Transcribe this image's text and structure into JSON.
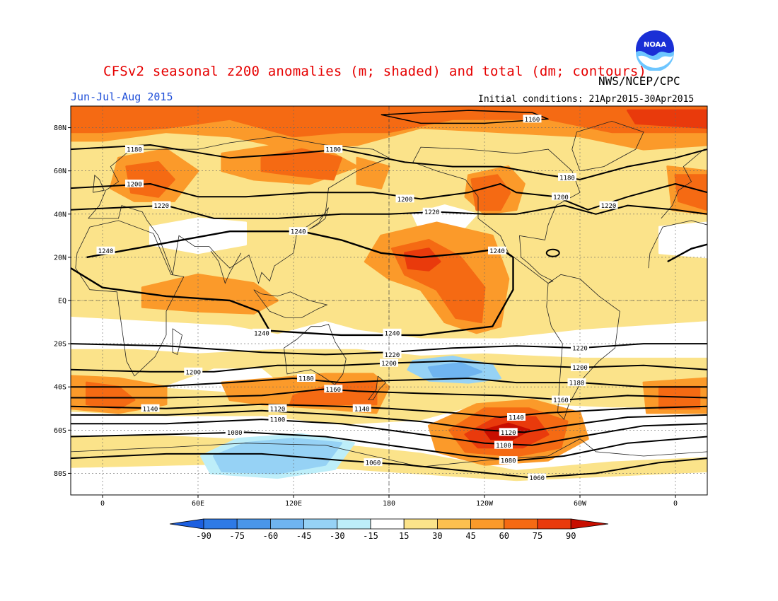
{
  "header": {
    "title": "CFSv2 seasonal z200 anomalies (m; shaded) and total (dm; contours)",
    "agency": "NWS/NCEP/CPC",
    "period": "Jun-Jul-Aug 2015",
    "initial_conditions": "Initial conditions: 21Apr2015-30Apr2015",
    "logo_text": "NOAA"
  },
  "map": {
    "projection": "cylindrical equidistant",
    "lon_range": [
      -20,
      380
    ],
    "lat_range": [
      -90,
      90
    ],
    "lat_labels": [
      "80N",
      "60N",
      "40N",
      "20N",
      "EQ",
      "20S",
      "40S",
      "60S",
      "80S"
    ],
    "lon_labels": [
      "0",
      "60E",
      "120E",
      "180",
      "120W",
      "60W",
      "0"
    ],
    "contour_labels": [
      {
        "value": "1160",
        "lon": 270,
        "lat": 84
      },
      {
        "value": "1180",
        "lon": 20,
        "lat": 70
      },
      {
        "value": "1180",
        "lon": 145,
        "lat": 70
      },
      {
        "value": "1180",
        "lon": 292,
        "lat": 57
      },
      {
        "value": "1200",
        "lon": 20,
        "lat": 54
      },
      {
        "value": "1200",
        "lon": 190,
        "lat": 47
      },
      {
        "value": "1200",
        "lon": 288,
        "lat": 48
      },
      {
        "value": "1220",
        "lon": 37,
        "lat": 44
      },
      {
        "value": "1220",
        "lon": 207,
        "lat": 41
      },
      {
        "value": "1220",
        "lon": 318,
        "lat": 44
      },
      {
        "value": "1240",
        "lon": 123,
        "lat": 32
      },
      {
        "value": "1240",
        "lon": 2,
        "lat": 23
      },
      {
        "value": "1240",
        "lon": 248,
        "lat": 23
      },
      {
        "value": "1240",
        "lon": 100,
        "lat": -15
      },
      {
        "value": "1240",
        "lon": 182,
        "lat": -15
      },
      {
        "value": "1220",
        "lon": 182,
        "lat": -25
      },
      {
        "value": "1220",
        "lon": 300,
        "lat": -22
      },
      {
        "value": "1200",
        "lon": 180,
        "lat": -29
      },
      {
        "value": "1200",
        "lon": 300,
        "lat": -31
      },
      {
        "value": "1200",
        "lon": 57,
        "lat": -33
      },
      {
        "value": "1180",
        "lon": 128,
        "lat": -36
      },
      {
        "value": "1180",
        "lon": 298,
        "lat": -38
      },
      {
        "value": "1160",
        "lon": 145,
        "lat": -41
      },
      {
        "value": "1160",
        "lon": 288,
        "lat": -46
      },
      {
        "value": "1140",
        "lon": 30,
        "lat": -50
      },
      {
        "value": "1140",
        "lon": 163,
        "lat": -50
      },
      {
        "value": "1140",
        "lon": 260,
        "lat": -54
      },
      {
        "value": "1120",
        "lon": 110,
        "lat": -50
      },
      {
        "value": "1120",
        "lon": 255,
        "lat": -61
      },
      {
        "value": "1100",
        "lon": 110,
        "lat": -55
      },
      {
        "value": "1100",
        "lon": 252,
        "lat": -67
      },
      {
        "value": "1080",
        "lon": 83,
        "lat": -61
      },
      {
        "value": "1080",
        "lon": 255,
        "lat": -74
      },
      {
        "value": "1060",
        "lon": 170,
        "lat": -75
      },
      {
        "value": "1060",
        "lon": 273,
        "lat": -82
      }
    ]
  },
  "colorbar": {
    "labels": [
      "-90",
      "-75",
      "-60",
      "-45",
      "-30",
      "-15",
      "15",
      "30",
      "45",
      "60",
      "75",
      "90"
    ],
    "colors": [
      "#1c5fe0",
      "#2e7ae6",
      "#4a96ea",
      "#6fb4f0",
      "#96d2f5",
      "#bdeef9",
      "#ffffff",
      "#fbe38a",
      "#fcc04f",
      "#fb9a2a",
      "#f56a13",
      "#e93a0c",
      "#c80e00"
    ],
    "units": "m"
  }
}
